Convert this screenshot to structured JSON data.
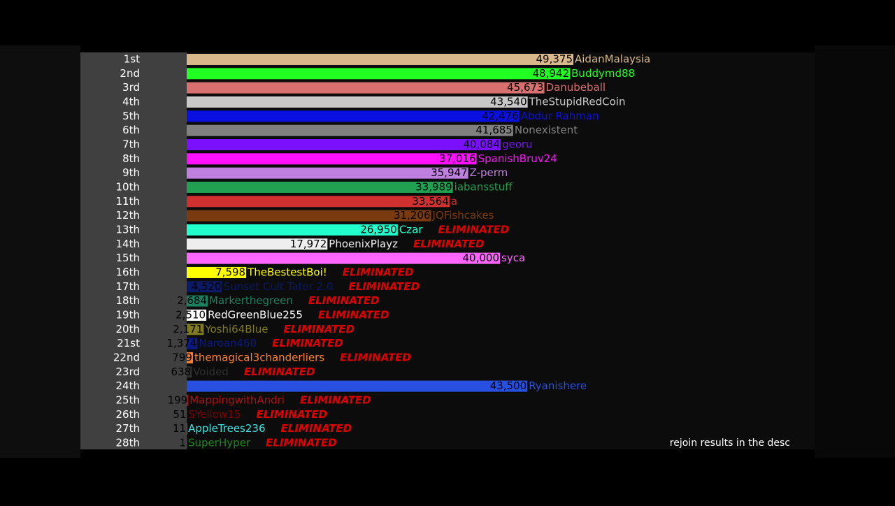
{
  "chart_data": {
    "type": "leaderboard-bar",
    "categories": [
      "1st",
      "2nd",
      "3rd",
      "4th",
      "5th",
      "6th",
      "7th",
      "8th",
      "9th",
      "10th",
      "11th",
      "12th",
      "13th",
      "14th",
      "15th",
      "16th",
      "17th",
      "18th",
      "19th",
      "20th",
      "21st",
      "22nd",
      "23rd",
      "24th",
      "25th",
      "26th",
      "27th",
      "28th"
    ],
    "names": [
      "AidanMalaysia",
      "Buddymd88",
      "Danubeball",
      "TheStupidRedCoin",
      "Abdur Rahman",
      "Nonexistent",
      "georu",
      "SpanishBruv24",
      "Z-perm",
      "iabansstuff",
      "a",
      "JQFishcakes",
      "Czar",
      "PhoenixPlayz",
      "syca",
      "TheBestestBoi!",
      "Sunset Cult Tater 2.0",
      "Markerthegreen",
      "RedGreenBlue255",
      "Yoshi64Blue",
      "Naroan460",
      "themagical3chanderliers",
      "Voided",
      "Ryanishere",
      "MappingwithAndri",
      "SYellow15",
      "AppleTrees236",
      "SuperHyper"
    ],
    "values": [
      49375,
      48942,
      45673,
      43540,
      42476,
      41685,
      40084,
      37016,
      35947,
      33989,
      33564,
      31206,
      26950,
      17972,
      40000,
      7598,
      4520,
      2684,
      2510,
      2171,
      1374,
      799,
      638,
      43500,
      199,
      51,
      11,
      1
    ],
    "value_labels": [
      "49,375",
      "48,942",
      "45,673",
      "43,540",
      "42,476",
      "41,685",
      "40,084",
      "37,016",
      "35,947",
      "33,989",
      "33,564",
      "31,206",
      "26,950",
      "17,972",
      "40,000",
      "7,598",
      "4,520",
      "2,684",
      "2,510",
      "2,171",
      "1,374",
      "799",
      "638",
      "43,500",
      "199",
      "51",
      "11",
      "1"
    ],
    "colors": [
      "#d9b98c",
      "#22ff22",
      "#d97070",
      "#c8c8c8",
      "#0a10e0",
      "#808080",
      "#7a10ff",
      "#ff10ff",
      "#c080e0",
      "#20a050",
      "#d03030",
      "#7a3a10",
      "#20ffcc",
      "#eeeeee",
      "#ff66ff",
      "#ffff00",
      "#0a1a66",
      "#1a8060",
      "#ffffff",
      "#807a20",
      "#0a1a80",
      "#ff8030",
      "#303030",
      "#2850e0",
      "#b01010",
      "#800000",
      "#40e0e0",
      "#208020"
    ],
    "eliminated": [
      false,
      false,
      false,
      false,
      false,
      false,
      false,
      false,
      false,
      false,
      false,
      false,
      true,
      true,
      false,
      true,
      true,
      true,
      true,
      true,
      true,
      true,
      true,
      false,
      true,
      true,
      true,
      true
    ],
    "status_label": "ELIMINATED"
  },
  "caption": "rejoin results in the desc"
}
